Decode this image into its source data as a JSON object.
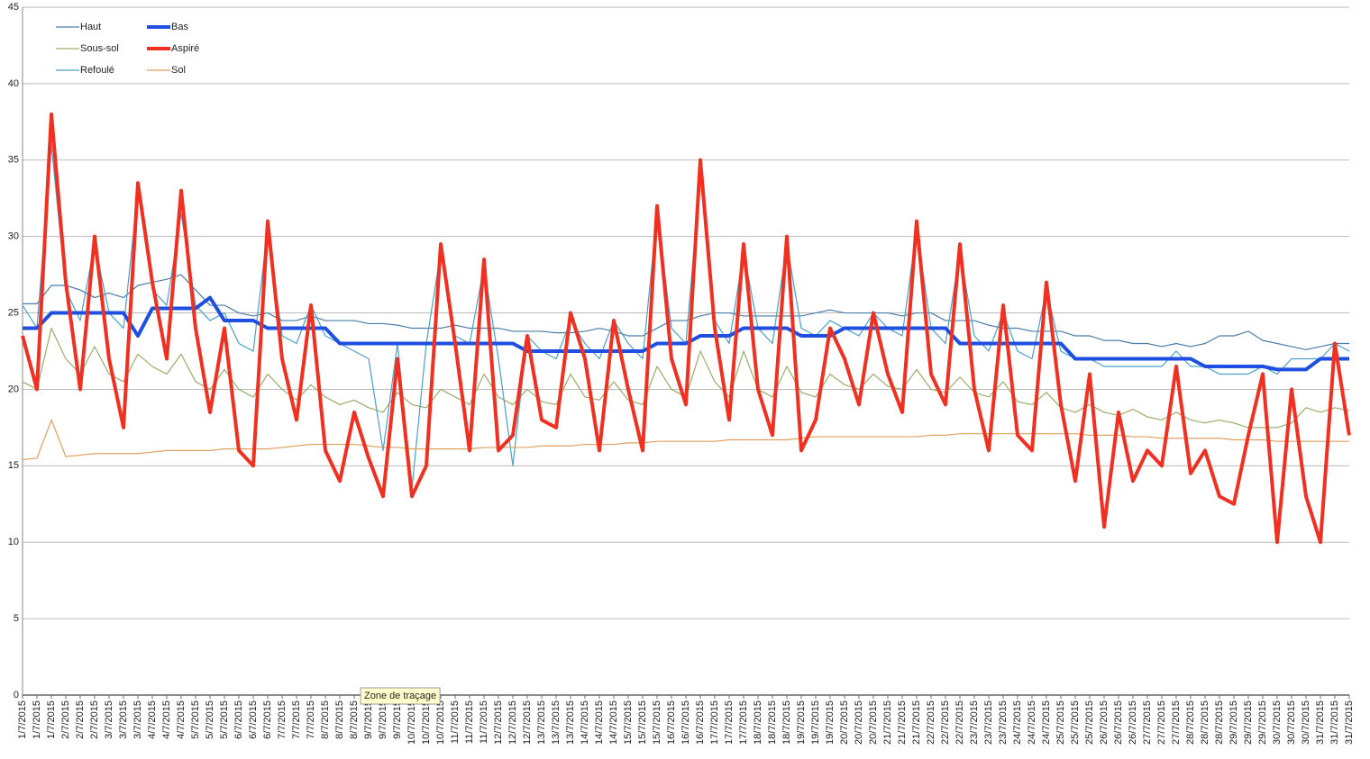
{
  "chart_data": {
    "type": "line",
    "categories": [
      "1/7/2015",
      "1/7/2015",
      "1/7/2015",
      "2/7/2015",
      "2/7/2015",
      "2/7/2015",
      "3/7/2015",
      "3/7/2015",
      "3/7/2015",
      "4/7/2015",
      "4/7/2015",
      "4/7/2015",
      "5/7/2015",
      "5/7/2015",
      "5/7/2015",
      "6/7/2015",
      "6/7/2015",
      "6/7/2015",
      "7/7/2015",
      "7/7/2015",
      "7/7/2015",
      "8/7/2015",
      "8/7/2015",
      "8/7/2015",
      "9/7/2015",
      "9/7/2015",
      "9/7/2015",
      "10/7/2015",
      "10/7/2015",
      "10/7/2015",
      "11/7/2015",
      "11/7/2015",
      "11/7/2015",
      "12/7/2015",
      "12/7/2015",
      "12/7/2015",
      "13/7/2015",
      "13/7/2015",
      "13/7/2015",
      "14/7/2015",
      "14/7/2015",
      "14/7/2015",
      "15/7/2015",
      "15/7/2015",
      "15/7/2015",
      "16/7/2015",
      "16/7/2015",
      "16/7/2015",
      "17/7/2015",
      "17/7/2015",
      "17/7/2015",
      "18/7/2015",
      "18/7/2015",
      "18/7/2015",
      "19/7/2015",
      "19/7/2015",
      "19/7/2015",
      "20/7/2015",
      "20/7/2015",
      "20/7/2015",
      "21/7/2015",
      "21/7/2015",
      "21/7/2015",
      "22/7/2015",
      "22/7/2015",
      "22/7/2015",
      "23/7/2015",
      "23/7/2015",
      "23/7/2015",
      "24/7/2015",
      "24/7/2015",
      "24/7/2015",
      "25/7/2015",
      "25/7/2015",
      "25/7/2015",
      "26/7/2015",
      "26/7/2015",
      "26/7/2015",
      "27/7/2015",
      "27/7/2015",
      "27/7/2015",
      "28/7/2015",
      "28/7/2015",
      "28/7/2015",
      "29/7/2015",
      "29/7/2015",
      "29/7/2015",
      "30/7/2015",
      "30/7/2015",
      "30/7/2015",
      "31/7/2015",
      "31/7/2015",
      "31/7/2015"
    ],
    "series": [
      {
        "name": "Haut",
        "color": "#4a7ca8",
        "width": 1.2,
        "values": [
          25.6,
          25.6,
          26.8,
          26.8,
          26.5,
          26,
          26.3,
          26,
          26.8,
          27,
          27.2,
          27.5,
          26.5,
          25.5,
          25.5,
          25,
          24.8,
          25,
          24.5,
          24.5,
          24.8,
          24.5,
          24.5,
          24.5,
          24.3,
          24.3,
          24.2,
          24,
          24,
          24,
          24.2,
          24,
          24,
          24,
          23.8,
          23.8,
          23.8,
          23.7,
          23.7,
          23.8,
          24,
          23.8,
          23.5,
          23.5,
          24,
          24.5,
          24.5,
          24.8,
          25,
          25,
          24.8,
          24.8,
          24.8,
          24.8,
          24.8,
          25,
          25.2,
          25,
          25,
          25,
          25,
          24.8,
          25,
          25,
          24.5,
          24.5,
          24.5,
          24.2,
          24,
          24,
          23.8,
          23.8,
          23.8,
          23.5,
          23.5,
          23.2,
          23.2,
          23,
          23,
          22.8,
          23,
          22.8,
          23,
          23.5,
          23.5,
          23.8,
          23.2,
          23,
          22.8,
          22.6,
          22.8,
          23,
          23
        ]
      },
      {
        "name": "Bas",
        "color": "#1f4fe0",
        "width": 4,
        "values": [
          24,
          24,
          25,
          25,
          25,
          25,
          25,
          25,
          23.5,
          25.3,
          25.3,
          25.3,
          25.3,
          26,
          24.5,
          24.5,
          24.5,
          24,
          24,
          24,
          24,
          24,
          23,
          23,
          23,
          23,
          23,
          23,
          23,
          23,
          23,
          23,
          23,
          23,
          23,
          22.5,
          22.5,
          22.5,
          22.5,
          22.5,
          22.5,
          22.5,
          22.5,
          22.5,
          23,
          23,
          23,
          23.5,
          23.5,
          23.5,
          24,
          24,
          24,
          24,
          23.5,
          23.5,
          23.5,
          24,
          24,
          24,
          24,
          24,
          24,
          24,
          24,
          23,
          23,
          23,
          23,
          23,
          23,
          23,
          23,
          22,
          22,
          22,
          22,
          22,
          22,
          22,
          22,
          22,
          21.5,
          21.5,
          21.5,
          21.5,
          21.5,
          21.3,
          21.3,
          21.3,
          22,
          22,
          22
        ]
      },
      {
        "name": "Sous-sol",
        "color": "#9aad6a",
        "width": 1.2,
        "values": [
          20.5,
          20,
          24,
          22,
          21,
          22.8,
          21,
          20.5,
          22.3,
          21.5,
          21,
          22.3,
          20.5,
          20,
          21.3,
          20,
          19.5,
          21,
          20,
          19.3,
          20.3,
          19.5,
          19,
          19.3,
          18.8,
          18.5,
          19.8,
          19,
          18.8,
          20,
          19.5,
          19,
          21,
          19.5,
          19,
          20,
          19.2,
          19,
          21,
          19.5,
          19.3,
          20.5,
          19.3,
          19,
          21.5,
          20,
          19.5,
          22.5,
          20.5,
          19.5,
          22.5,
          20,
          19.5,
          21.5,
          19.8,
          19.5,
          21,
          20.3,
          20,
          21,
          20.2,
          20,
          21.3,
          20,
          19.8,
          20.8,
          19.8,
          19.5,
          20.5,
          19.2,
          19,
          19.8,
          18.8,
          18.5,
          19,
          18.5,
          18.3,
          18.7,
          18.2,
          18,
          18.5,
          18,
          17.8,
          18,
          17.8,
          17.5,
          17.5,
          17.5,
          17.8,
          18.8,
          18.5,
          18.8,
          18.6
        ]
      },
      {
        "name": "Aspiré",
        "color": "#f03020",
        "width": 4,
        "values": [
          23.5,
          20,
          38,
          27,
          20,
          30,
          22,
          17.5,
          33.5,
          27,
          22,
          33,
          24,
          18.5,
          24,
          16,
          15,
          31,
          22,
          18,
          25.5,
          16,
          14,
          18.5,
          15.5,
          13,
          22,
          13,
          15,
          29.5,
          23,
          16,
          28.5,
          16,
          17,
          23.5,
          18,
          17.5,
          25,
          22,
          16,
          24.5,
          20,
          16,
          32,
          22,
          19,
          35,
          24,
          18,
          29.5,
          20,
          17,
          30,
          16,
          18,
          24,
          22,
          19,
          25,
          21,
          18.5,
          31,
          21,
          19,
          29.5,
          20,
          16,
          25.5,
          17,
          16,
          27,
          19,
          14,
          21,
          11,
          18.5,
          14,
          16,
          15,
          21.5,
          14.5,
          16,
          13,
          12.5,
          17,
          21,
          10,
          20,
          13,
          10,
          23,
          17
        ]
      },
      {
        "name": "Refoulé",
        "color": "#4aa0c8",
        "width": 1.2,
        "values": [
          25.5,
          24,
          36,
          26.5,
          24.5,
          29.5,
          25,
          24,
          33,
          26.5,
          25.5,
          31.5,
          25.5,
          24.5,
          25,
          23,
          22.5,
          30.5,
          23.5,
          23,
          25.5,
          23.5,
          23,
          22.5,
          22,
          16,
          23,
          13.5,
          23,
          29,
          23.5,
          23,
          28,
          22,
          15,
          23.5,
          22.5,
          22,
          24.5,
          23,
          22,
          24.5,
          23,
          22,
          31.5,
          24,
          23,
          34,
          24.5,
          23,
          29,
          24,
          23,
          29.5,
          24,
          23.5,
          24.5,
          24,
          23.5,
          25,
          24,
          23.5,
          30.5,
          24,
          23,
          29,
          23.5,
          22.5,
          25,
          22.5,
          22,
          26.5,
          22.5,
          22,
          22,
          21.5,
          21.5,
          21.5,
          21.5,
          21.5,
          22.5,
          21.5,
          21.5,
          21,
          21,
          21,
          21.5,
          21,
          22,
          22,
          22,
          23,
          22.5
        ]
      },
      {
        "name": "Sol",
        "color": "#e0a060",
        "width": 1.2,
        "values": [
          15.4,
          15.5,
          18,
          15.6,
          15.7,
          15.8,
          15.8,
          15.8,
          15.8,
          15.9,
          16,
          16,
          16,
          16,
          16.1,
          16.1,
          16.1,
          16.1,
          16.2,
          16.3,
          16.4,
          16.4,
          16.4,
          16.4,
          16.3,
          16.2,
          16.2,
          16.1,
          16.1,
          16.1,
          16.1,
          16.1,
          16.2,
          16.2,
          16.2,
          16.2,
          16.3,
          16.3,
          16.3,
          16.4,
          16.4,
          16.4,
          16.5,
          16.5,
          16.6,
          16.6,
          16.6,
          16.6,
          16.6,
          16.7,
          16.7,
          16.7,
          16.7,
          16.7,
          16.8,
          16.9,
          16.9,
          16.9,
          16.9,
          16.9,
          16.9,
          16.9,
          16.9,
          17,
          17,
          17.1,
          17.1,
          17.1,
          17.1,
          17.1,
          17.1,
          17.1,
          17.1,
          17.1,
          17,
          17,
          17,
          16.9,
          16.9,
          16.8,
          16.8,
          16.8,
          16.8,
          16.8,
          16.7,
          16.7,
          16.7,
          16.6,
          16.6,
          16.6,
          16.6,
          16.6,
          16.6
        ]
      }
    ],
    "ylim": [
      0,
      45
    ],
    "yticks": [
      0,
      5,
      10,
      15,
      20,
      25,
      30,
      35,
      40,
      45
    ],
    "grid": true,
    "legend": "top-left",
    "tooltip": "Zone de traçage"
  }
}
